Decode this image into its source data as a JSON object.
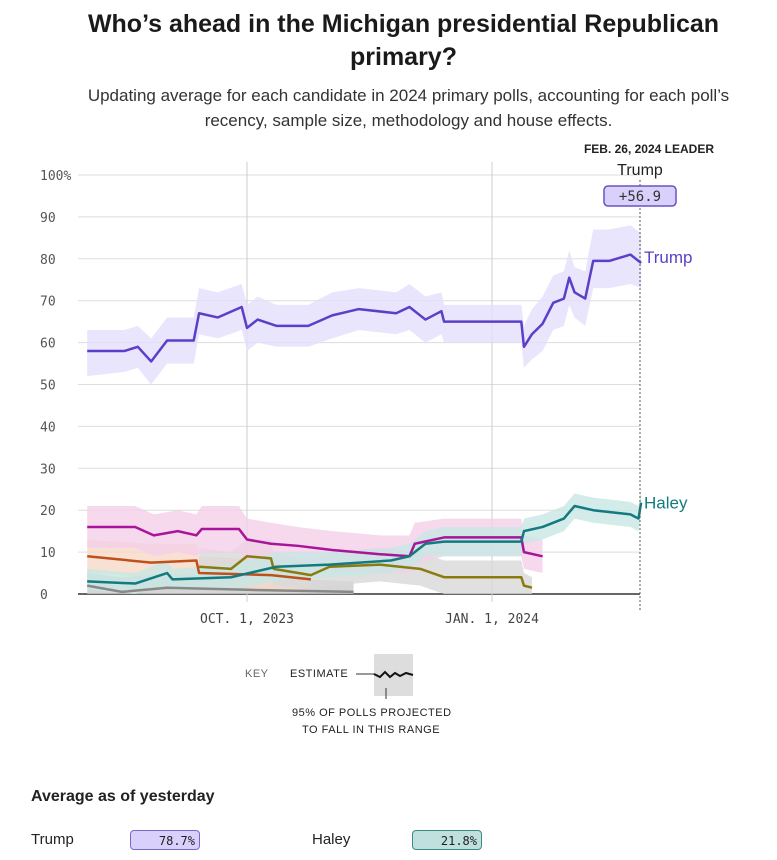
{
  "title": "Who’s ahead in the Michigan presidential Republican primary?",
  "subtitle": "Updating average for each candidate in 2024 primary polls, accounting for each poll’s recency, sample size, methodology and house effects.",
  "leader": {
    "heading": "FEB. 26, 2024 LEADER",
    "name": "Trump",
    "margin": "+56.9"
  },
  "key": {
    "label": "KEY",
    "estimate": "ESTIMATE",
    "range": "95% OF POLLS PROJECTED",
    "range2": "TO FALL IN THIS RANGE"
  },
  "average": {
    "heading": "Average as of yesterday",
    "items": [
      {
        "name": "Trump",
        "value": "78.7%",
        "color": "#d9d0fb"
      },
      {
        "name": "Haley",
        "value": "21.8%",
        "color": "#bfe0de"
      }
    ]
  },
  "chart_data": {
    "type": "line",
    "xlim": [
      "2023-08-01",
      "2024-02-26"
    ],
    "ylim": [
      0,
      100
    ],
    "yticks": [
      0,
      10,
      20,
      30,
      40,
      50,
      60,
      70,
      80,
      90,
      100
    ],
    "ytick_labels": [
      "0",
      "10",
      "20",
      "30",
      "40",
      "50",
      "60",
      "70",
      "80",
      "90",
      "100%"
    ],
    "xticks": [
      "2023-10-01",
      "2024-01-01"
    ],
    "xtick_labels": [
      "OCT. 1, 2023",
      "JAN. 1, 2024"
    ],
    "grid": true,
    "series": [
      {
        "name": "",
        "color": "#888888",
        "band": "#cccccc",
        "points": [
          [
            "2023-08-02",
            2,
            0,
            5
          ],
          [
            "2023-08-15",
            0.5,
            0,
            4
          ],
          [
            "2023-09-01",
            1.5,
            0,
            5
          ],
          [
            "2023-10-01",
            1,
            0,
            4
          ],
          [
            "2023-11-10",
            0.5,
            0,
            3
          ]
        ]
      },
      {
        "name": "",
        "color": "#c0501a",
        "band": "#f6d9c8",
        "points": [
          [
            "2023-08-02",
            9,
            5,
            13
          ],
          [
            "2023-08-26",
            7.5,
            4,
            12
          ],
          [
            "2023-09-12",
            8,
            4,
            12
          ],
          [
            "2023-09-13",
            5,
            2,
            9
          ],
          [
            "2023-10-10",
            4.5,
            1,
            8
          ],
          [
            "2023-10-25",
            3.5,
            1,
            7
          ]
        ]
      },
      {
        "name": "",
        "color": "#8a7a10",
        "band": "#d8d8d8",
        "points": [
          [
            "2023-09-13",
            6.5,
            2,
            11
          ],
          [
            "2023-09-25",
            6,
            2,
            10
          ],
          [
            "2023-10-01",
            9,
            4,
            13
          ],
          [
            "2023-10-10",
            8.5,
            4,
            13
          ],
          [
            "2023-10-11",
            6,
            2,
            10
          ],
          [
            "2023-10-25",
            4.5,
            1,
            8
          ],
          [
            "2023-11-01",
            6.5,
            2,
            10
          ],
          [
            "2023-11-20",
            7,
            3,
            11
          ],
          [
            "2023-12-05",
            6,
            2,
            10
          ],
          [
            "2023-12-14",
            4,
            0,
            8
          ],
          [
            "2024-01-12",
            4,
            0,
            8
          ],
          [
            "2024-01-13",
            2,
            0,
            5
          ],
          [
            "2024-01-16",
            1.5,
            0,
            4
          ]
        ]
      },
      {
        "name": "",
        "color": "#a8159a",
        "band": "#f4cfe8",
        "points": [
          [
            "2023-08-02",
            16,
            11,
            21
          ],
          [
            "2023-08-20",
            16,
            11,
            21
          ],
          [
            "2023-08-27",
            14,
            9,
            19
          ],
          [
            "2023-09-05",
            15,
            10,
            20
          ],
          [
            "2023-09-12",
            14,
            9,
            19
          ],
          [
            "2023-09-14",
            15.5,
            10,
            21
          ],
          [
            "2023-09-28",
            15.5,
            10,
            21
          ],
          [
            "2023-10-01",
            13,
            8,
            18
          ],
          [
            "2023-10-10",
            12,
            7,
            17
          ],
          [
            "2023-10-20",
            11.5,
            7,
            16
          ],
          [
            "2023-11-02",
            10.5,
            6,
            15
          ],
          [
            "2023-11-20",
            9.5,
            5,
            14
          ],
          [
            "2023-12-01",
            9,
            5,
            14
          ],
          [
            "2023-12-03",
            12,
            7,
            17
          ],
          [
            "2023-12-14",
            13.5,
            9,
            18
          ],
          [
            "2024-01-12",
            13.5,
            9,
            18
          ],
          [
            "2024-01-13",
            10,
            6,
            14
          ],
          [
            "2024-01-20",
            9,
            5,
            13
          ]
        ]
      },
      {
        "name": "Haley",
        "color": "#137a7f",
        "band": "#c8e6e4",
        "points": [
          [
            "2023-08-02",
            3,
            1,
            6
          ],
          [
            "2023-08-20",
            2.5,
            0,
            5
          ],
          [
            "2023-09-01",
            5,
            2,
            8
          ],
          [
            "2023-09-03",
            3.5,
            1,
            6
          ],
          [
            "2023-09-25",
            4,
            1,
            7
          ],
          [
            "2023-10-12",
            6.5,
            3,
            10
          ],
          [
            "2023-11-01",
            7,
            4,
            10
          ],
          [
            "2023-11-24",
            8,
            5,
            11
          ],
          [
            "2023-12-01",
            9,
            6,
            12
          ],
          [
            "2023-12-07",
            12,
            9,
            15
          ],
          [
            "2023-12-14",
            12.5,
            9,
            16
          ],
          [
            "2024-01-12",
            12.5,
            9,
            16
          ],
          [
            "2024-01-13",
            15,
            12,
            18
          ],
          [
            "2024-01-20",
            16,
            13,
            19
          ],
          [
            "2024-01-28",
            18,
            15,
            21
          ],
          [
            "2024-02-01",
            21,
            18,
            24
          ],
          [
            "2024-02-08",
            20,
            17,
            23
          ],
          [
            "2024-02-22",
            19,
            16,
            22
          ],
          [
            "2024-02-25",
            18,
            15,
            21
          ],
          [
            "2024-02-26",
            21.8,
            19,
            25
          ]
        ]
      },
      {
        "name": "Trump",
        "color": "#5b3fc8",
        "band": "#e4defb",
        "points": [
          [
            "2023-08-02",
            58,
            52,
            63
          ],
          [
            "2023-08-16",
            58,
            53,
            63
          ],
          [
            "2023-08-21",
            59,
            54,
            64
          ],
          [
            "2023-08-26",
            55.5,
            50,
            61
          ],
          [
            "2023-09-01",
            60.5,
            55,
            66
          ],
          [
            "2023-09-11",
            60.5,
            55,
            66
          ],
          [
            "2023-09-13",
            67,
            62,
            73
          ],
          [
            "2023-09-20",
            66,
            61,
            72
          ],
          [
            "2023-09-29",
            68.5,
            63,
            74
          ],
          [
            "2023-10-01",
            63.5,
            58,
            69
          ],
          [
            "2023-10-05",
            65.5,
            60,
            71
          ],
          [
            "2023-10-12",
            64,
            59,
            69
          ],
          [
            "2023-10-24",
            64,
            59,
            69
          ],
          [
            "2023-11-02",
            66.5,
            61,
            72
          ],
          [
            "2023-11-12",
            68,
            63,
            73
          ],
          [
            "2023-11-26",
            67,
            62,
            72
          ],
          [
            "2023-12-01",
            68.5,
            63,
            74
          ],
          [
            "2023-12-07",
            65.5,
            60,
            71
          ],
          [
            "2023-12-13",
            67.5,
            62,
            72
          ],
          [
            "2023-12-14",
            65,
            60,
            69
          ],
          [
            "2024-01-12",
            65,
            60,
            69
          ],
          [
            "2024-01-13",
            59,
            54,
            64
          ],
          [
            "2024-01-16",
            62,
            56,
            68
          ],
          [
            "2024-01-20",
            64.5,
            58,
            71
          ],
          [
            "2024-01-24",
            69.5,
            63,
            76
          ],
          [
            "2024-01-28",
            70.5,
            64,
            77
          ],
          [
            "2024-01-30",
            75.5,
            69,
            82
          ],
          [
            "2024-02-01",
            72,
            66,
            78
          ],
          [
            "2024-02-05",
            70.5,
            64,
            77
          ],
          [
            "2024-02-08",
            79.5,
            73,
            87
          ],
          [
            "2024-02-14",
            79.5,
            73,
            87
          ],
          [
            "2024-02-22",
            81,
            74,
            88
          ],
          [
            "2024-02-26",
            79,
            73,
            86
          ]
        ]
      }
    ]
  }
}
